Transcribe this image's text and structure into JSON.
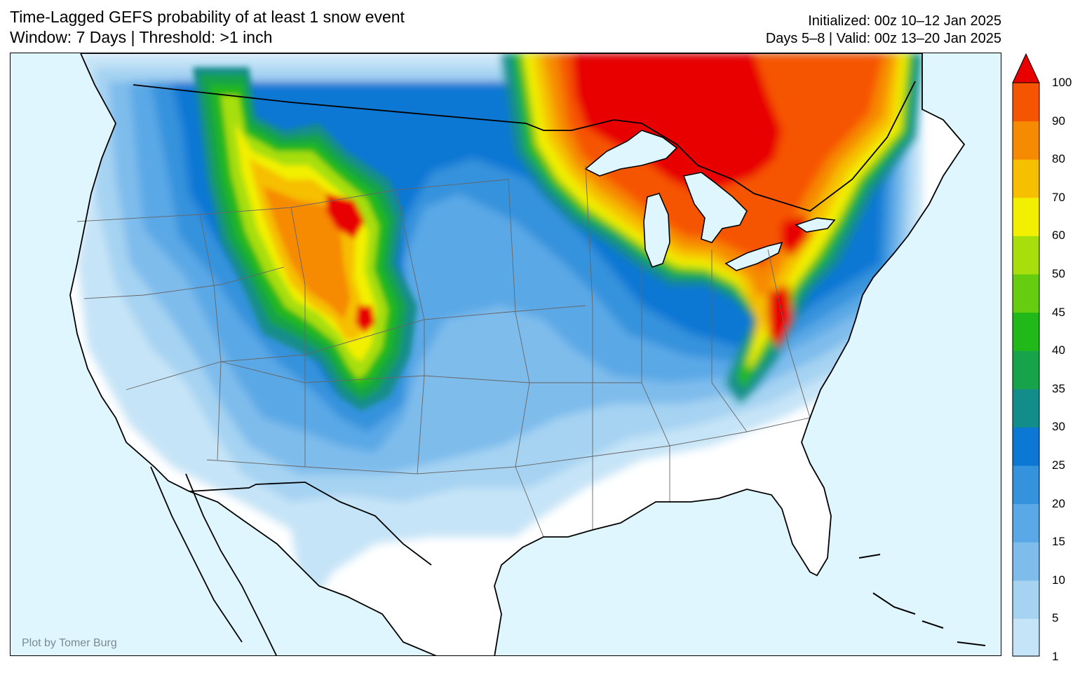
{
  "title": {
    "line1": "Time-Lagged GEFS probability of at least 1 snow event",
    "line2": "Window: 7 Days | Threshold: >1 inch"
  },
  "info": {
    "initialized": "Initialized: 00z 10–12 Jan 2025",
    "valid": "Days 5–8 | Valid: 00z 13–20 Jan 2025"
  },
  "credit": "Plot by Tomer Burg",
  "colorbar": {
    "levels": [
      {
        "value": "1",
        "color": "#c6e4f7"
      },
      {
        "value": "5",
        "color": "#a6d3f2"
      },
      {
        "value": "10",
        "color": "#7ebcec"
      },
      {
        "value": "15",
        "color": "#5aa8e6"
      },
      {
        "value": "20",
        "color": "#3592dc"
      },
      {
        "value": "25",
        "color": "#0a78d4"
      },
      {
        "value": "30",
        "color": "#138d8a"
      },
      {
        "value": "35",
        "color": "#16a34a"
      },
      {
        "value": "40",
        "color": "#21b81a"
      },
      {
        "value": "45",
        "color": "#66cc10"
      },
      {
        "value": "50",
        "color": "#a7de0b"
      },
      {
        "value": "60",
        "color": "#f2f000"
      },
      {
        "value": "70",
        "color": "#f6bf00"
      },
      {
        "value": "80",
        "color": "#f68a00"
      },
      {
        "value": "90",
        "color": "#f65500"
      },
      {
        "value": "100",
        "color": "#e80000"
      }
    ]
  },
  "colors": {
    "ocean": "#dff6ff",
    "land": "#ffffff",
    "border": "#000000"
  }
}
